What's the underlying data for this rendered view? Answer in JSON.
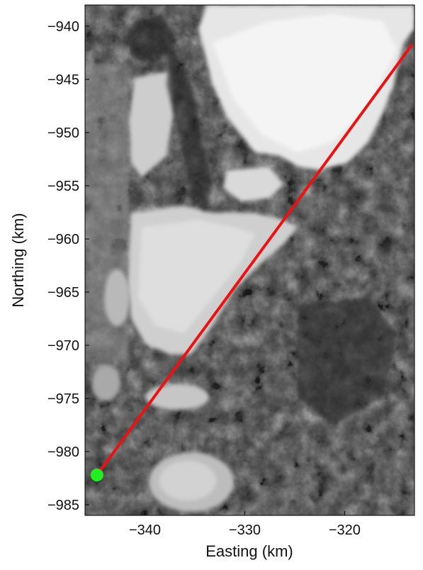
{
  "figure": {
    "xlabel": "Easting (km)",
    "ylabel": "Northing (km)",
    "xlim": [
      -346,
      -313
    ],
    "ylim": [
      -986,
      -938
    ],
    "x_ticks": [
      -340,
      -330,
      -320
    ],
    "x_tick_labels": [
      "−340",
      "−330",
      "−320"
    ],
    "y_ticks": [
      -940,
      -945,
      -950,
      -955,
      -960,
      -965,
      -970,
      -975,
      -980,
      -985
    ],
    "y_tick_labels": [
      "−940",
      "−945",
      "−950",
      "−955",
      "−960",
      "−965",
      "−970",
      "−975",
      "−980",
      "−985"
    ]
  },
  "map": {
    "base_layer": "grayscale satellite image with bright snow/ice fields over dark rocky terrain",
    "profile_line": {
      "start": {
        "easting": -344.8,
        "northing": -982.2
      },
      "end": {
        "easting": -313.3,
        "northing": -941.8
      },
      "color": "#ee1111"
    },
    "start_marker": {
      "easting": -344.8,
      "northing": -982.2,
      "color": "#22ee22"
    }
  }
}
